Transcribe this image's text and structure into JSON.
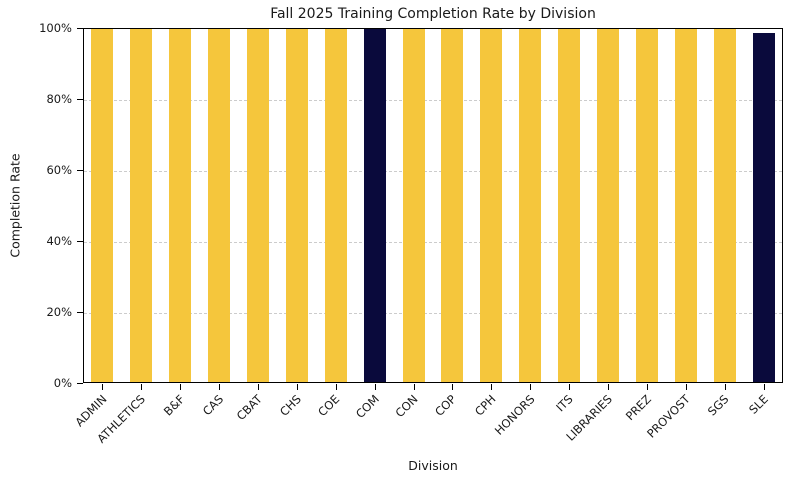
{
  "chart_data": {
    "type": "bar",
    "title": "Fall 2025 Training Completion Rate by Division",
    "xlabel": "Division",
    "ylabel": "Completion Rate",
    "categories": [
      "ADMIN",
      "ATHLETICS",
      "B&F",
      "CAS",
      "CBAT",
      "CHS",
      "COE",
      "COM",
      "CON",
      "COP",
      "CPH",
      "HONORS",
      "ITS",
      "LIBRARIES",
      "PREZ",
      "PROVOST",
      "SGS",
      "SLE"
    ],
    "values": [
      100,
      100,
      100,
      100,
      100,
      100,
      100,
      100,
      100,
      100,
      100,
      100,
      100,
      100,
      100,
      100,
      100,
      99
    ],
    "bar_colors": [
      "#F5C63C",
      "#F5C63C",
      "#F5C63C",
      "#F5C63C",
      "#F5C63C",
      "#F5C63C",
      "#F5C63C",
      "#0A0A3C",
      "#F5C63C",
      "#F5C63C",
      "#F5C63C",
      "#F5C63C",
      "#F5C63C",
      "#F5C63C",
      "#F5C63C",
      "#F5C63C",
      "#F5C63C",
      "#0A0A3C"
    ],
    "default_bar_color": "#F5C63C",
    "highlight_color": "#0A0A3C",
    "highlighted_categories": [
      "COM",
      "SLE"
    ],
    "ylim": [
      0,
      100
    ],
    "yticks": [
      0,
      20,
      40,
      60,
      80,
      100
    ],
    "ytick_labels": [
      "0%",
      "20%",
      "40%",
      "60%",
      "80%",
      "100%"
    ],
    "grid": "horizontal-dashed",
    "grid_color": "#cccccc",
    "legend": "none"
  }
}
